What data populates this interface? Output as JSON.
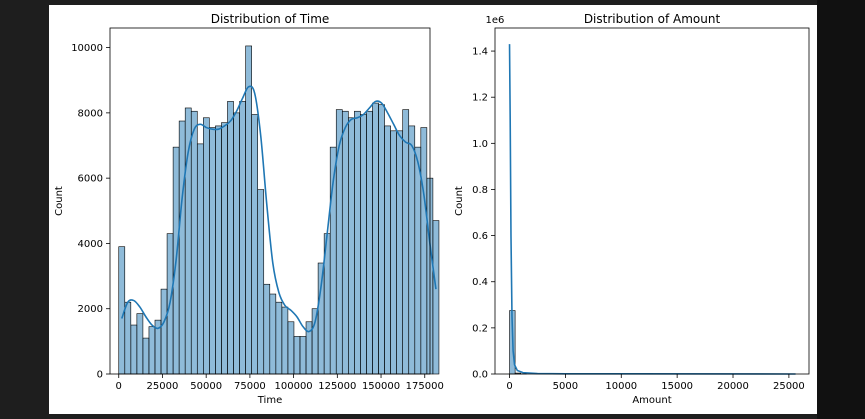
{
  "figure": {
    "background": "#ffffff",
    "page_background": "#1e1e1e"
  },
  "chart_data": [
    {
      "type": "histogram",
      "title": "Distribution of Time",
      "xlabel": "Time",
      "ylabel": "Count",
      "xlim": [
        -5000,
        178000
      ],
      "ylim": [
        0,
        10600
      ],
      "xticks": [
        0,
        25000,
        50000,
        75000,
        100000,
        125000,
        150000,
        175000
      ],
      "yticks": [
        0,
        2000,
        4000,
        6000,
        8000,
        10000
      ],
      "bin_width": 3455,
      "bar_color": "#1f77b4",
      "kde": true,
      "values": [
        3900,
        2200,
        1500,
        1850,
        1100,
        1450,
        1650,
        2600,
        4300,
        6950,
        7750,
        8150,
        8050,
        7050,
        7850,
        7550,
        7600,
        7700,
        8350,
        8000,
        8350,
        10050,
        7950,
        5650,
        2750,
        2450,
        2200,
        2050,
        1600,
        1150,
        1150,
        1600,
        2000,
        3400,
        4300,
        6950,
        8100,
        8050,
        7850,
        8050,
        7950,
        8050,
        8300,
        8250,
        7600,
        7450,
        7450,
        8100,
        7600,
        6950,
        7550,
        6000,
        4700
      ],
      "kde_values": [
        1700,
        2200,
        2250,
        2050,
        1750,
        1500,
        1400,
        1600,
        2200,
        3500,
        5400,
        6800,
        7500,
        7650,
        7550,
        7500,
        7500,
        7600,
        7750,
        8050,
        8450,
        8800,
        8600,
        7300,
        5200,
        3400,
        2500,
        2100,
        1950,
        1750,
        1450,
        1300,
        1600,
        2700,
        4300,
        5900,
        7000,
        7550,
        7800,
        7850,
        7950,
        8150,
        8350,
        8300,
        8000,
        7650,
        7300,
        7100,
        7000,
        6500,
        5500,
        4000,
        2600
      ]
    },
    {
      "type": "histogram",
      "title": "Distribution of Amount",
      "xlabel": "Amount",
      "ylabel": "Count",
      "offset_text": "1e6",
      "xlim": [
        -1300,
        26800
      ],
      "ylim": [
        0,
        1.5
      ],
      "xticks": [
        0,
        5000,
        10000,
        15000,
        20000,
        25000
      ],
      "yticks": [
        0.0,
        0.2,
        0.4,
        0.6,
        0.8,
        1.0,
        1.2,
        1.4
      ],
      "ytick_labels": [
        "0.0",
        "0.2",
        "0.4",
        "0.6",
        "0.8",
        "1.0",
        "1.2",
        "1.4"
      ],
      "bin_width": 500,
      "bar_color": "#1f77b4",
      "kde": true,
      "values": [
        0.275,
        0.004,
        0.001
      ],
      "kde_points": [
        [
          0,
          1.43
        ],
        [
          60,
          1.1
        ],
        [
          130,
          0.6
        ],
        [
          220,
          0.25
        ],
        [
          320,
          0.1
        ],
        [
          450,
          0.04
        ],
        [
          700,
          0.015
        ],
        [
          1200,
          0.006
        ],
        [
          2500,
          0.002
        ],
        [
          5000,
          0.001
        ],
        [
          25600,
          0.0
        ]
      ]
    }
  ]
}
